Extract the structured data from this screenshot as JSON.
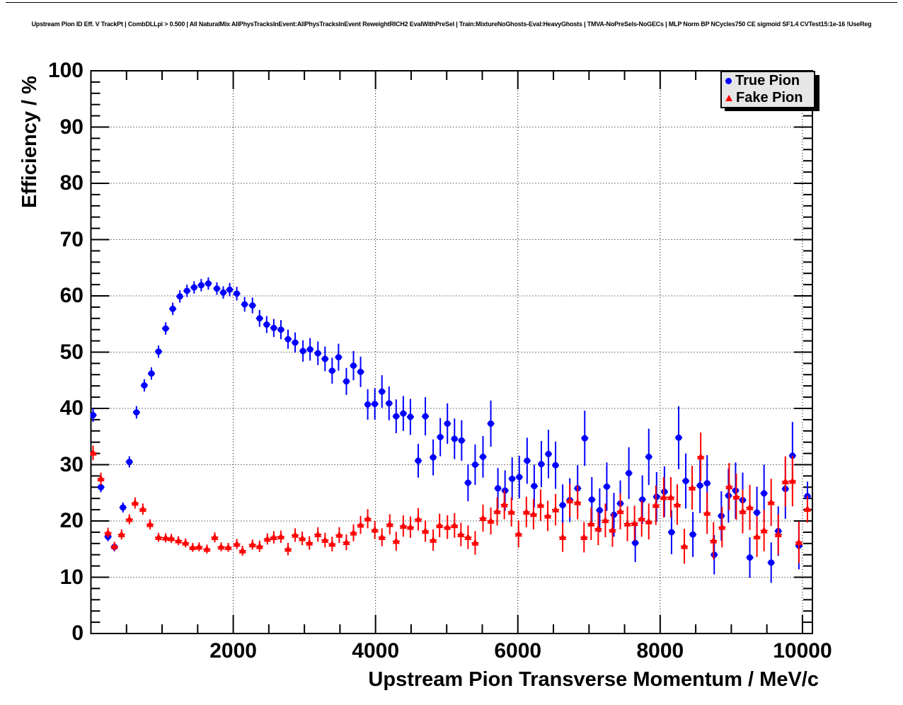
{
  "page": {
    "background_color": "#ffffff"
  },
  "chart_data": {
    "type": "scatter",
    "title": "Upstream Pion ID Eff. V TrackPt | CombDLLpi > 0.500 | All NaturalMix AllPhysTracksInEvent:AllPhysTracksInEvent ReweightRICH2 EvalWithPreSel | Train:MixtureNoGhosts-Eval:HeavyGhosts | TMVA-NoPreSels-NoGECs | MLP Norm BP NCycles750 CE sigmoid SF1.4 CVTest15:1e-16 !UseReg",
    "xlabel": "Upstream Pion Transverse Momentum / MeV/c",
    "ylabel": "Efficiency / %",
    "xlim": [
      0,
      10140
    ],
    "ylim": [
      0,
      100
    ],
    "grid": "dotted-at-major-ticks",
    "x_major_ticks": [
      {
        "v": 2000,
        "label": "2000"
      },
      {
        "v": 4000,
        "label": "4000"
      },
      {
        "v": 6000,
        "label": "6000"
      },
      {
        "v": 8000,
        "label": "8000"
      },
      {
        "v": 10000,
        "label": "10000"
      }
    ],
    "x_minor_step": 500,
    "y_major_ticks": [
      {
        "v": 0,
        "label": "0"
      },
      {
        "v": 10,
        "label": "10"
      },
      {
        "v": 20,
        "label": "20"
      },
      {
        "v": 30,
        "label": "30"
      },
      {
        "v": 40,
        "label": "40"
      },
      {
        "v": 50,
        "label": "50"
      },
      {
        "v": 60,
        "label": "60"
      },
      {
        "v": 70,
        "label": "70"
      },
      {
        "v": 80,
        "label": "80"
      },
      {
        "v": 90,
        "label": "90"
      },
      {
        "v": 100,
        "label": "100"
      }
    ],
    "y_minor_step": 2,
    "legend": {
      "position": "top-right",
      "fill_color": "#e6e6e6",
      "border_color": "#000000",
      "entries": [
        {
          "label": "True Pion",
          "marker": "circle",
          "color": "#0000ff"
        },
        {
          "label": "Fake Pion",
          "marker": "triangle",
          "color": "#ff0000"
        }
      ]
    },
    "series": [
      {
        "name": "True Pion",
        "marker": "circle",
        "color": "#0000ff",
        "xerr": 50,
        "points": [
          [
            30,
            38.8,
            1.2
          ],
          [
            140,
            26.0,
            0.9
          ],
          [
            240,
            17.2,
            0.8
          ],
          [
            330,
            15.4,
            0.8
          ],
          [
            450,
            22.4,
            0.9
          ],
          [
            540,
            30.5,
            1.0
          ],
          [
            640,
            39.3,
            1.1
          ],
          [
            750,
            44.1,
            1.1
          ],
          [
            850,
            46.2,
            1.1
          ],
          [
            950,
            50.1,
            1.1
          ],
          [
            1050,
            54.2,
            1.1
          ],
          [
            1150,
            57.7,
            1.1
          ],
          [
            1250,
            59.9,
            1.1
          ],
          [
            1350,
            60.9,
            1.1
          ],
          [
            1450,
            61.5,
            1.1
          ],
          [
            1550,
            61.9,
            1.1
          ],
          [
            1650,
            62.2,
            1.1
          ],
          [
            1770,
            61.3,
            1.1
          ],
          [
            1860,
            60.6,
            1.1
          ],
          [
            1950,
            61.1,
            1.2
          ],
          [
            2050,
            60.4,
            1.2
          ],
          [
            2160,
            58.5,
            1.3
          ],
          [
            2270,
            58.3,
            1.4
          ],
          [
            2370,
            56.0,
            1.5
          ],
          [
            2470,
            54.9,
            1.5
          ],
          [
            2570,
            54.3,
            1.6
          ],
          [
            2670,
            54.0,
            1.7
          ],
          [
            2770,
            52.3,
            1.7
          ],
          [
            2870,
            51.7,
            1.8
          ],
          [
            2980,
            50.2,
            1.9
          ],
          [
            3080,
            50.5,
            2.0
          ],
          [
            3190,
            49.8,
            2.1
          ],
          [
            3290,
            48.8,
            2.2
          ],
          [
            3390,
            46.7,
            2.3
          ],
          [
            3480,
            49.1,
            2.4
          ],
          [
            3590,
            44.8,
            2.4
          ],
          [
            3690,
            47.6,
            2.6
          ],
          [
            3790,
            46.5,
            2.7
          ],
          [
            3890,
            40.7,
            2.7
          ],
          [
            3990,
            40.8,
            2.8
          ],
          [
            4090,
            43.0,
            2.9
          ],
          [
            4190,
            40.9,
            3.0
          ],
          [
            4290,
            38.6,
            3.0
          ],
          [
            4390,
            39.1,
            3.1
          ],
          [
            4490,
            38.5,
            3.2
          ],
          [
            4600,
            30.7,
            3.0
          ],
          [
            4700,
            38.6,
            3.4
          ],
          [
            4810,
            31.3,
            3.2
          ],
          [
            4910,
            34.9,
            3.4
          ],
          [
            5010,
            37.3,
            3.6
          ],
          [
            5110,
            34.6,
            3.6
          ],
          [
            5210,
            34.3,
            3.6
          ],
          [
            5300,
            26.8,
            3.3
          ],
          [
            5400,
            30.0,
            3.6
          ],
          [
            5510,
            31.4,
            3.7
          ],
          [
            5620,
            37.3,
            4.1
          ],
          [
            5720,
            25.8,
            3.6
          ],
          [
            5820,
            25.4,
            3.6
          ],
          [
            5920,
            27.5,
            3.8
          ],
          [
            6020,
            27.8,
            3.8
          ],
          [
            6130,
            30.7,
            4.1
          ],
          [
            6230,
            26.2,
            3.8
          ],
          [
            6330,
            30.1,
            4.1
          ],
          [
            6430,
            31.9,
            4.3
          ],
          [
            6530,
            29.9,
            4.2
          ],
          [
            6630,
            22.8,
            3.7
          ],
          [
            6730,
            23.7,
            3.9
          ],
          [
            6840,
            25.8,
            4.1
          ],
          [
            6940,
            34.7,
            4.9
          ],
          [
            7040,
            23.8,
            4.0
          ],
          [
            7150,
            21.9,
            3.9
          ],
          [
            7250,
            26.1,
            4.3
          ],
          [
            7350,
            21.1,
            3.9
          ],
          [
            7440,
            23.1,
            4.1
          ],
          [
            7560,
            28.5,
            4.6
          ],
          [
            7650,
            16.1,
            3.4
          ],
          [
            7750,
            23.8,
            4.3
          ],
          [
            7840,
            31.4,
            5.0
          ],
          [
            7950,
            24.3,
            4.4
          ],
          [
            8060,
            25.2,
            4.5
          ],
          [
            8160,
            18.0,
            3.9
          ],
          [
            8260,
            34.8,
            5.6
          ],
          [
            8360,
            27.1,
            4.9
          ],
          [
            8460,
            17.6,
            4.0
          ],
          [
            8560,
            26.3,
            4.9
          ],
          [
            8660,
            26.7,
            5.0
          ],
          [
            8760,
            14.0,
            3.5
          ],
          [
            8860,
            20.9,
            4.4
          ],
          [
            8960,
            24.5,
            4.8
          ],
          [
            9060,
            25.4,
            5.0
          ],
          [
            9160,
            23.7,
            4.9
          ],
          [
            9260,
            13.5,
            3.6
          ],
          [
            9360,
            21.5,
            4.6
          ],
          [
            9460,
            24.9,
            5.1
          ],
          [
            9560,
            12.6,
            3.6
          ],
          [
            9660,
            18.2,
            4.4
          ],
          [
            9760,
            25.7,
            5.3
          ],
          [
            9860,
            31.6,
            6.0
          ],
          [
            9950,
            15.6,
            4.2
          ],
          [
            10070,
            24.4,
            2.6
          ]
        ]
      },
      {
        "name": "Fake Pion",
        "marker": "triangle",
        "color": "#ff0000",
        "xerr": 50,
        "points": [
          [
            30,
            32.1,
            1.3
          ],
          [
            140,
            27.5,
            1.1
          ],
          [
            240,
            17.9,
            0.9
          ],
          [
            330,
            15.5,
            0.8
          ],
          [
            430,
            17.6,
            0.9
          ],
          [
            540,
            20.3,
            0.9
          ],
          [
            620,
            23.2,
            1.0
          ],
          [
            730,
            22.1,
            1.0
          ],
          [
            830,
            19.4,
            0.9
          ],
          [
            950,
            17.1,
            0.8
          ],
          [
            1050,
            17.0,
            0.8
          ],
          [
            1130,
            16.9,
            0.8
          ],
          [
            1230,
            16.5,
            0.8
          ],
          [
            1330,
            16.1,
            0.8
          ],
          [
            1430,
            15.3,
            0.8
          ],
          [
            1520,
            15.4,
            0.8
          ],
          [
            1630,
            15.0,
            0.8
          ],
          [
            1740,
            17.1,
            0.9
          ],
          [
            1830,
            15.4,
            0.8
          ],
          [
            1930,
            15.3,
            0.8
          ],
          [
            2050,
            15.9,
            0.9
          ],
          [
            2130,
            14.7,
            0.9
          ],
          [
            2270,
            15.8,
            0.9
          ],
          [
            2370,
            15.5,
            1.0
          ],
          [
            2480,
            16.8,
            1.0
          ],
          [
            2570,
            17.1,
            1.1
          ],
          [
            2670,
            17.2,
            1.1
          ],
          [
            2770,
            15.0,
            1.1
          ],
          [
            2870,
            17.5,
            1.2
          ],
          [
            2970,
            16.9,
            1.2
          ],
          [
            3070,
            16.1,
            1.2
          ],
          [
            3190,
            17.6,
            1.3
          ],
          [
            3290,
            16.6,
            1.3
          ],
          [
            3390,
            15.9,
            1.3
          ],
          [
            3490,
            17.5,
            1.4
          ],
          [
            3590,
            16.2,
            1.4
          ],
          [
            3690,
            17.9,
            1.5
          ],
          [
            3790,
            19.3,
            1.6
          ],
          [
            3890,
            20.4,
            1.7
          ],
          [
            3990,
            18.4,
            1.6
          ],
          [
            4090,
            17.1,
            1.6
          ],
          [
            4200,
            19.4,
            1.8
          ],
          [
            4290,
            16.4,
            1.7
          ],
          [
            4390,
            19.1,
            1.9
          ],
          [
            4490,
            18.9,
            1.9
          ],
          [
            4600,
            20.3,
            2.0
          ],
          [
            4700,
            18.2,
            1.9
          ],
          [
            4810,
            16.6,
            1.9
          ],
          [
            4900,
            19.2,
            2.1
          ],
          [
            5010,
            18.9,
            2.1
          ],
          [
            5110,
            19.2,
            2.2
          ],
          [
            5200,
            17.6,
            2.1
          ],
          [
            5300,
            17.1,
            2.1
          ],
          [
            5400,
            16.1,
            2.1
          ],
          [
            5510,
            20.5,
            2.4
          ],
          [
            5620,
            20.0,
            2.4
          ],
          [
            5710,
            21.7,
            2.5
          ],
          [
            5810,
            22.9,
            2.6
          ],
          [
            5910,
            21.6,
            2.6
          ],
          [
            6010,
            17.7,
            2.4
          ],
          [
            6120,
            21.6,
            2.7
          ],
          [
            6220,
            21.2,
            2.7
          ],
          [
            6320,
            22.8,
            2.8
          ],
          [
            6420,
            20.9,
            2.7
          ],
          [
            6530,
            22.0,
            2.8
          ],
          [
            6630,
            17.1,
            2.6
          ],
          [
            6730,
            23.6,
            3.0
          ],
          [
            6840,
            23.3,
            3.0
          ],
          [
            6930,
            17.1,
            2.7
          ],
          [
            7030,
            19.5,
            2.9
          ],
          [
            7130,
            18.6,
            2.9
          ],
          [
            7230,
            20.1,
            3.0
          ],
          [
            7330,
            18.4,
            3.0
          ],
          [
            7440,
            21.7,
            3.2
          ],
          [
            7540,
            19.5,
            3.1
          ],
          [
            7640,
            19.6,
            3.1
          ],
          [
            7740,
            20.4,
            3.2
          ],
          [
            7840,
            19.9,
            3.2
          ],
          [
            7940,
            22.8,
            3.5
          ],
          [
            8050,
            24.2,
            3.6
          ],
          [
            8150,
            24.2,
            3.6
          ],
          [
            8240,
            22.9,
            3.6
          ],
          [
            8340,
            15.5,
            3.1
          ],
          [
            8450,
            25.9,
            3.9
          ],
          [
            8570,
            31.4,
            4.3
          ],
          [
            8660,
            21.4,
            3.7
          ],
          [
            8750,
            16.5,
            3.3
          ],
          [
            8870,
            18.9,
            3.6
          ],
          [
            8970,
            26.1,
            4.2
          ],
          [
            9070,
            24.3,
            4.1
          ],
          [
            9160,
            21.7,
            3.9
          ],
          [
            9260,
            22.4,
            4.0
          ],
          [
            9360,
            17.2,
            3.6
          ],
          [
            9460,
            18.3,
            3.7
          ],
          [
            9560,
            23.3,
            4.2
          ],
          [
            9660,
            17.6,
            3.6
          ],
          [
            9760,
            27.0,
            4.5
          ],
          [
            9860,
            27.1,
            4.5
          ],
          [
            9950,
            16.2,
            3.7
          ],
          [
            10070,
            22.1,
            2.4
          ]
        ]
      }
    ]
  }
}
